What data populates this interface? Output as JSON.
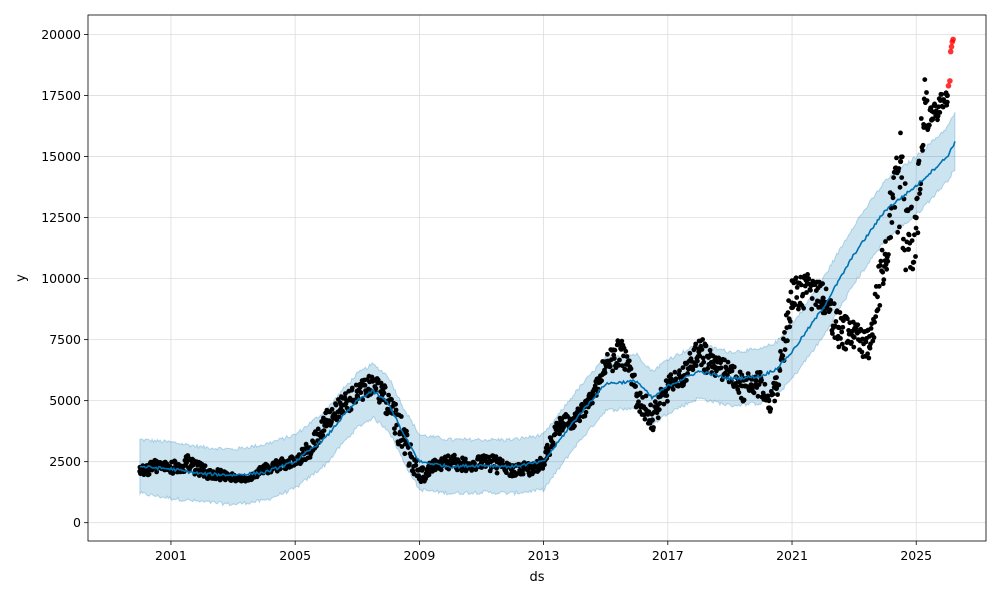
{
  "chart_data": {
    "type": "line",
    "title": "",
    "xlabel": "ds",
    "ylabel": "y",
    "xlim": [
      "1998-05-01",
      "2027-04-01"
    ],
    "ylim": [
      -750,
      20800
    ],
    "grid": true,
    "x_ticks": [
      "2001",
      "2005",
      "2009",
      "2013",
      "2017",
      "2021",
      "2025"
    ],
    "y_ticks": [
      0,
      2500,
      5000,
      7500,
      10000,
      12500,
      15000,
      17500,
      20000
    ],
    "colors": {
      "forecast_line": "#0072B2",
      "uncertainty_band": "#0072B2",
      "observed_points": "#000000",
      "holdout_points": "#ff0000",
      "grid": "#dddddd"
    },
    "series": [
      {
        "kind": "forecast",
        "x": [
          "2000-01-01",
          "2001-01-01",
          "2002-01-01",
          "2003-01-01",
          "2004-01-01",
          "2005-01-01",
          "2006-01-01",
          "2006-07-01",
          "2007-01-01",
          "2007-07-01",
          "2008-01-01",
          "2008-07-01",
          "2009-01-01",
          "2010-01-01",
          "2011-01-01",
          "2012-01-01",
          "2013-01-01",
          "2014-01-01",
          "2015-01-01",
          "2016-01-01",
          "2016-07-01",
          "2017-01-01",
          "2018-01-01",
          "2019-01-01",
          "2020-01-01",
          "2020-07-01",
          "2021-01-01",
          "2022-01-01",
          "2023-01-01",
          "2024-01-01",
          "2025-01-01",
          "2026-01-01",
          "2026-04-01"
        ],
        "yhat": [
          2300,
          2200,
          2000,
          1950,
          2050,
          2500,
          3500,
          4300,
          5000,
          5400,
          4900,
          3600,
          2500,
          2300,
          2350,
          2300,
          2500,
          4200,
          5700,
          5800,
          5100,
          5600,
          6200,
          5900,
          6000,
          6300,
          7000,
          8800,
          11000,
          12800,
          13800,
          15000,
          15600
        ],
        "yhat_lower": [
          1200,
          1000,
          850,
          750,
          900,
          1400,
          2400,
          3200,
          3900,
          4300,
          3800,
          2500,
          1350,
          1200,
          1250,
          1200,
          1350,
          3100,
          4600,
          4700,
          4000,
          4500,
          5100,
          4800,
          4900,
          5200,
          5900,
          7600,
          9800,
          11600,
          12600,
          14000,
          14500
        ],
        "yhat_upper": [
          3400,
          3300,
          3100,
          3000,
          3200,
          3600,
          4600,
          5400,
          6100,
          6500,
          6000,
          4700,
          3600,
          3400,
          3400,
          3400,
          3600,
          5300,
          6800,
          6900,
          6200,
          6700,
          7300,
          7000,
          7100,
          7400,
          8100,
          10000,
          12200,
          14000,
          15000,
          16200,
          16800
        ]
      },
      {
        "kind": "observed",
        "x": [
          "2000-01-01",
          "2000-07-01",
          "2001-01-01",
          "2001-07-01",
          "2002-01-01",
          "2002-07-01",
          "2003-01-01",
          "2003-07-01",
          "2004-01-01",
          "2004-07-01",
          "2005-01-01",
          "2005-07-01",
          "2006-01-01",
          "2006-07-01",
          "2007-01-01",
          "2007-07-01",
          "2008-01-01",
          "2008-07-01",
          "2009-01-01",
          "2009-07-01",
          "2010-01-01",
          "2010-07-01",
          "2011-01-01",
          "2011-07-01",
          "2012-01-01",
          "2012-07-01",
          "2013-01-01",
          "2013-07-01",
          "2014-01-01",
          "2014-07-01",
          "2015-01-01",
          "2015-07-01",
          "2016-01-01",
          "2016-07-01",
          "2017-01-01",
          "2017-07-01",
          "2018-01-01",
          "2018-07-01",
          "2019-01-01",
          "2019-07-01",
          "2020-01-01",
          "2020-04-01",
          "2020-07-01",
          "2021-01-01",
          "2021-07-01",
          "2022-01-01",
          "2022-07-01",
          "2023-01-01",
          "2023-07-01",
          "2024-01-01",
          "2024-07-01",
          "2024-10-01",
          "2025-01-01",
          "2025-04-01",
          "2025-07-01",
          "2026-01-01"
        ],
        "y": [
          2100,
          2400,
          2200,
          2500,
          2100,
          2000,
          1800,
          1750,
          2200,
          2400,
          2500,
          3000,
          4200,
          4800,
          5200,
          5800,
          5000,
          3600,
          1800,
          2300,
          2500,
          2400,
          2450,
          2500,
          2100,
          2200,
          2500,
          4000,
          4200,
          5000,
          6500,
          7300,
          5200,
          4200,
          5500,
          6000,
          7000,
          6400,
          6200,
          5600,
          5800,
          4700,
          5500,
          9000,
          9800,
          9200,
          8000,
          7600,
          7200,
          11000,
          14800,
          11200,
          12500,
          16200,
          16500,
          17500
        ],
        "y_min": [
          1900,
          2000,
          2000,
          2100,
          1800,
          1750,
          1700,
          1700,
          2000,
          2100,
          2300,
          2600,
          3800,
          4300,
          4800,
          5300,
          4300,
          2600,
          1500,
          2100,
          2200,
          2100,
          2200,
          2000,
          1900,
          1900,
          2200,
          3600,
          3900,
          4600,
          5900,
          6500,
          4600,
          3700,
          5000,
          5600,
          6400,
          5900,
          5700,
          4800,
          5200,
          4400,
          5000,
          8200,
          8800,
          8600,
          7200,
          7000,
          6600,
          9800,
          12000,
          9100,
          10600,
          16000,
          16200,
          17000
        ],
        "y_max": [
          2300,
          2600,
          2500,
          2800,
          2400,
          2200,
          2000,
          1900,
          2400,
          2600,
          2800,
          3400,
          4600,
          5300,
          5700,
          6100,
          5500,
          4200,
          2200,
          2600,
          2800,
          2700,
          2750,
          2800,
          2400,
          2500,
          2800,
          4400,
          4500,
          5400,
          7000,
          7600,
          5800,
          4800,
          6000,
          6400,
          7700,
          6900,
          6600,
          6100,
          6200,
          5200,
          6100,
          10000,
          10200,
          9800,
          8700,
          8200,
          7900,
          12500,
          16200,
          13200,
          13300,
          18400,
          17000,
          18000
        ]
      },
      {
        "kind": "holdout",
        "x": [
          "2026-01-15",
          "2026-02-01",
          "2026-02-10",
          "2026-02-20",
          "2026-03-01",
          "2026-03-10"
        ],
        "y": [
          17900,
          18100,
          19300,
          19500,
          19700,
          19800
        ]
      }
    ]
  }
}
